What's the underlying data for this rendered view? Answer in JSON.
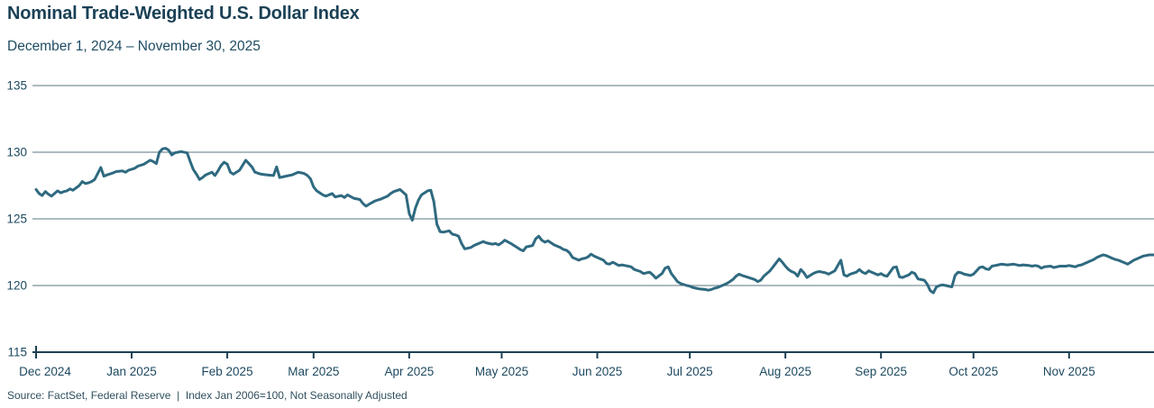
{
  "header": {
    "title": "Nominal Trade-Weighted U.S. Dollar Index",
    "subtitle": "December 1, 2024 – November 30, 2025"
  },
  "footer": {
    "source": "Source: FactSet, Federal Reserve  |  Index Jan 2006=100, Not Seasonally Adjusted"
  },
  "chart_data": {
    "type": "line",
    "title": "Nominal Trade-Weighted U.S. Dollar Index",
    "subtitle": "December 1, 2024 – November 30, 2025",
    "xlabel": "",
    "ylabel": "",
    "ylim": [
      115,
      135
    ],
    "y_ticks": [
      135,
      130,
      125,
      120,
      115
    ],
    "grid": true,
    "legend": "none",
    "x_start": "2024-12-01",
    "x_end": "2025-11-30",
    "x_ticks": [
      {
        "date": "2024-12-01",
        "label": "Dec 2024"
      },
      {
        "date": "2025-01-01",
        "label": "Jan 2025"
      },
      {
        "date": "2025-02-01",
        "label": "Feb 2025"
      },
      {
        "date": "2025-03-01",
        "label": "Mar 2025"
      },
      {
        "date": "2025-04-01",
        "label": "Apr 2025"
      },
      {
        "date": "2025-05-01",
        "label": "May 2025"
      },
      {
        "date": "2025-06-01",
        "label": "Jun 2025"
      },
      {
        "date": "2025-07-01",
        "label": "Jul 2025"
      },
      {
        "date": "2025-08-01",
        "label": "Aug 2025"
      },
      {
        "date": "2025-09-01",
        "label": "Sep 2025"
      },
      {
        "date": "2025-10-01",
        "label": "Oct 2025"
      },
      {
        "date": "2025-11-01",
        "label": "Nov 2025"
      }
    ],
    "line_color": "#2f6a80",
    "grid_color": "#5b7482",
    "axis_color": "#1c4052",
    "label_color": "#1d4960",
    "points": [
      [
        "2024-12-01",
        127.2
      ],
      [
        "2024-12-02",
        126.9
      ],
      [
        "2024-12-03",
        126.75
      ],
      [
        "2024-12-04",
        127.05
      ],
      [
        "2024-12-05",
        126.85
      ],
      [
        "2024-12-06",
        126.7
      ],
      [
        "2024-12-08",
        127.1
      ],
      [
        "2024-12-09",
        126.95
      ],
      [
        "2024-12-10",
        127.05
      ],
      [
        "2024-12-11",
        127.1
      ],
      [
        "2024-12-12",
        127.25
      ],
      [
        "2024-12-13",
        127.15
      ],
      [
        "2024-12-15",
        127.5
      ],
      [
        "2024-12-16",
        127.8
      ],
      [
        "2024-12-17",
        127.65
      ],
      [
        "2024-12-18",
        127.7
      ],
      [
        "2024-12-19",
        127.8
      ],
      [
        "2024-12-20",
        127.95
      ],
      [
        "2024-12-22",
        128.85
      ],
      [
        "2024-12-23",
        128.2
      ],
      [
        "2024-12-24",
        128.3
      ],
      [
        "2024-12-26",
        128.45
      ],
      [
        "2024-12-27",
        128.55
      ],
      [
        "2024-12-29",
        128.6
      ],
      [
        "2024-12-30",
        128.5
      ],
      [
        "2024-12-31",
        128.65
      ],
      [
        "2025-01-02",
        128.8
      ],
      [
        "2025-01-03",
        128.95
      ],
      [
        "2025-01-05",
        129.1
      ],
      [
        "2025-01-06",
        129.25
      ],
      [
        "2025-01-07",
        129.4
      ],
      [
        "2025-01-08",
        129.3
      ],
      [
        "2025-01-09",
        129.15
      ],
      [
        "2025-01-10",
        130.0
      ],
      [
        "2025-01-11",
        130.25
      ],
      [
        "2025-01-12",
        130.3
      ],
      [
        "2025-01-13",
        130.15
      ],
      [
        "2025-01-14",
        129.8
      ],
      [
        "2025-01-15",
        129.95
      ],
      [
        "2025-01-16",
        130.0
      ],
      [
        "2025-01-17",
        130.05
      ],
      [
        "2025-01-19",
        129.95
      ],
      [
        "2025-01-20",
        129.3
      ],
      [
        "2025-01-21",
        128.7
      ],
      [
        "2025-01-22",
        128.35
      ],
      [
        "2025-01-23",
        127.95
      ],
      [
        "2025-01-24",
        128.1
      ],
      [
        "2025-01-25",
        128.3
      ],
      [
        "2025-01-27",
        128.5
      ],
      [
        "2025-01-28",
        128.25
      ],
      [
        "2025-01-29",
        128.6
      ],
      [
        "2025-01-30",
        129.0
      ],
      [
        "2025-01-31",
        129.25
      ],
      [
        "2025-02-01",
        129.1
      ],
      [
        "2025-02-02",
        128.5
      ],
      [
        "2025-02-03",
        128.35
      ],
      [
        "2025-02-05",
        128.65
      ],
      [
        "2025-02-07",
        129.4
      ],
      [
        "2025-02-09",
        128.9
      ],
      [
        "2025-02-10",
        128.5
      ],
      [
        "2025-02-12",
        128.35
      ],
      [
        "2025-02-14",
        128.3
      ],
      [
        "2025-02-16",
        128.25
      ],
      [
        "2025-02-17",
        128.9
      ],
      [
        "2025-02-18",
        128.1
      ],
      [
        "2025-02-20",
        128.2
      ],
      [
        "2025-02-22",
        128.3
      ],
      [
        "2025-02-24",
        128.5
      ],
      [
        "2025-02-25",
        128.45
      ],
      [
        "2025-02-26",
        128.4
      ],
      [
        "2025-02-27",
        128.25
      ],
      [
        "2025-02-28",
        128.0
      ],
      [
        "2025-03-01",
        127.4
      ],
      [
        "2025-03-02",
        127.1
      ],
      [
        "2025-03-04",
        126.8
      ],
      [
        "2025-03-05",
        126.7
      ],
      [
        "2025-03-07",
        126.9
      ],
      [
        "2025-03-08",
        126.65
      ],
      [
        "2025-03-10",
        126.75
      ],
      [
        "2025-03-11",
        126.6
      ],
      [
        "2025-03-12",
        126.8
      ],
      [
        "2025-03-14",
        126.55
      ],
      [
        "2025-03-16",
        126.45
      ],
      [
        "2025-03-17",
        126.15
      ],
      [
        "2025-03-18",
        125.95
      ],
      [
        "2025-03-19",
        126.1
      ],
      [
        "2025-03-21",
        126.35
      ],
      [
        "2025-03-23",
        126.5
      ],
      [
        "2025-03-25",
        126.7
      ],
      [
        "2025-03-26",
        126.9
      ],
      [
        "2025-03-27",
        127.05
      ],
      [
        "2025-03-29",
        127.2
      ],
      [
        "2025-03-30",
        127.0
      ],
      [
        "2025-03-31",
        126.8
      ],
      [
        "2025-04-01",
        125.4
      ],
      [
        "2025-04-02",
        124.9
      ],
      [
        "2025-04-03",
        125.8
      ],
      [
        "2025-04-04",
        126.4
      ],
      [
        "2025-04-05",
        126.8
      ],
      [
        "2025-04-07",
        127.1
      ],
      [
        "2025-04-08",
        127.15
      ],
      [
        "2025-04-09",
        126.3
      ],
      [
        "2025-04-10",
        124.6
      ],
      [
        "2025-04-11",
        124.05
      ],
      [
        "2025-04-12",
        124.0
      ],
      [
        "2025-04-14",
        124.1
      ],
      [
        "2025-04-15",
        123.85
      ],
      [
        "2025-04-16",
        123.8
      ],
      [
        "2025-04-17",
        123.7
      ],
      [
        "2025-04-18",
        123.15
      ],
      [
        "2025-04-19",
        122.75
      ],
      [
        "2025-04-21",
        122.85
      ],
      [
        "2025-04-22",
        123.0
      ],
      [
        "2025-04-23",
        123.1
      ],
      [
        "2025-04-25",
        123.3
      ],
      [
        "2025-04-26",
        123.2
      ],
      [
        "2025-04-28",
        123.1
      ],
      [
        "2025-04-29",
        123.15
      ],
      [
        "2025-04-30",
        123.05
      ],
      [
        "2025-05-01",
        123.2
      ],
      [
        "2025-05-02",
        123.4
      ],
      [
        "2025-05-04",
        123.15
      ],
      [
        "2025-05-05",
        123.0
      ],
      [
        "2025-05-06",
        122.85
      ],
      [
        "2025-05-07",
        122.7
      ],
      [
        "2025-05-08",
        122.6
      ],
      [
        "2025-05-09",
        122.9
      ],
      [
        "2025-05-11",
        123.0
      ],
      [
        "2025-05-12",
        123.5
      ],
      [
        "2025-05-13",
        123.7
      ],
      [
        "2025-05-14",
        123.4
      ],
      [
        "2025-05-15",
        123.25
      ],
      [
        "2025-05-16",
        123.35
      ],
      [
        "2025-05-18",
        123.05
      ],
      [
        "2025-05-20",
        122.85
      ],
      [
        "2025-05-21",
        122.7
      ],
      [
        "2025-05-22",
        122.65
      ],
      [
        "2025-05-23",
        122.45
      ],
      [
        "2025-05-24",
        122.1
      ],
      [
        "2025-05-26",
        121.9
      ],
      [
        "2025-05-27",
        122.0
      ],
      [
        "2025-05-28",
        122.05
      ],
      [
        "2025-05-29",
        122.15
      ],
      [
        "2025-05-30",
        122.35
      ],
      [
        "2025-05-31",
        122.2
      ],
      [
        "2025-06-01",
        122.1
      ],
      [
        "2025-06-02",
        122.0
      ],
      [
        "2025-06-03",
        121.9
      ],
      [
        "2025-06-04",
        121.65
      ],
      [
        "2025-06-05",
        121.6
      ],
      [
        "2025-06-06",
        121.75
      ],
      [
        "2025-06-08",
        121.5
      ],
      [
        "2025-06-09",
        121.55
      ],
      [
        "2025-06-10",
        121.5
      ],
      [
        "2025-06-11",
        121.45
      ],
      [
        "2025-06-12",
        121.4
      ],
      [
        "2025-06-13",
        121.2
      ],
      [
        "2025-06-15",
        121.05
      ],
      [
        "2025-06-16",
        120.9
      ],
      [
        "2025-06-17",
        120.95
      ],
      [
        "2025-06-18",
        121.0
      ],
      [
        "2025-06-19",
        120.8
      ],
      [
        "2025-06-20",
        120.55
      ],
      [
        "2025-06-22",
        120.9
      ],
      [
        "2025-06-23",
        121.3
      ],
      [
        "2025-06-24",
        121.4
      ],
      [
        "2025-06-25",
        120.9
      ],
      [
        "2025-06-26",
        120.6
      ],
      [
        "2025-06-27",
        120.3
      ],
      [
        "2025-06-28",
        120.15
      ],
      [
        "2025-06-30",
        120.0
      ],
      [
        "2025-07-01",
        119.95
      ],
      [
        "2025-07-02",
        119.85
      ],
      [
        "2025-07-03",
        119.8
      ],
      [
        "2025-07-04",
        119.75
      ],
      [
        "2025-07-06",
        119.7
      ],
      [
        "2025-07-07",
        119.65
      ],
      [
        "2025-07-08",
        119.7
      ],
      [
        "2025-07-09",
        119.8
      ],
      [
        "2025-07-10",
        119.85
      ],
      [
        "2025-07-11",
        119.95
      ],
      [
        "2025-07-13",
        120.15
      ],
      [
        "2025-07-14",
        120.3
      ],
      [
        "2025-07-15",
        120.45
      ],
      [
        "2025-07-16",
        120.7
      ],
      [
        "2025-07-17",
        120.85
      ],
      [
        "2025-07-18",
        120.75
      ],
      [
        "2025-07-20",
        120.6
      ],
      [
        "2025-07-22",
        120.45
      ],
      [
        "2025-07-23",
        120.3
      ],
      [
        "2025-07-24",
        120.4
      ],
      [
        "2025-07-25",
        120.7
      ],
      [
        "2025-07-27",
        121.1
      ],
      [
        "2025-07-28",
        121.4
      ],
      [
        "2025-07-29",
        121.7
      ],
      [
        "2025-07-30",
        122.0
      ],
      [
        "2025-07-31",
        121.75
      ],
      [
        "2025-08-01",
        121.45
      ],
      [
        "2025-08-02",
        121.2
      ],
      [
        "2025-08-03",
        121.05
      ],
      [
        "2025-08-04",
        120.95
      ],
      [
        "2025-08-05",
        120.7
      ],
      [
        "2025-08-06",
        121.2
      ],
      [
        "2025-08-07",
        120.95
      ],
      [
        "2025-08-08",
        120.6
      ],
      [
        "2025-08-10",
        120.9
      ],
      [
        "2025-08-11",
        121.0
      ],
      [
        "2025-08-12",
        121.05
      ],
      [
        "2025-08-13",
        121.0
      ],
      [
        "2025-08-14",
        120.95
      ],
      [
        "2025-08-15",
        120.85
      ],
      [
        "2025-08-17",
        121.1
      ],
      [
        "2025-08-18",
        121.5
      ],
      [
        "2025-08-19",
        121.9
      ],
      [
        "2025-08-20",
        120.8
      ],
      [
        "2025-08-21",
        120.7
      ],
      [
        "2025-08-22",
        120.85
      ],
      [
        "2025-08-24",
        121.0
      ],
      [
        "2025-08-25",
        121.2
      ],
      [
        "2025-08-26",
        121.0
      ],
      [
        "2025-08-27",
        120.9
      ],
      [
        "2025-08-28",
        121.1
      ],
      [
        "2025-08-29",
        121.0
      ],
      [
        "2025-08-31",
        120.8
      ],
      [
        "2025-09-01",
        120.9
      ],
      [
        "2025-09-02",
        120.75
      ],
      [
        "2025-09-03",
        120.7
      ],
      [
        "2025-09-05",
        121.35
      ],
      [
        "2025-09-06",
        121.4
      ],
      [
        "2025-09-07",
        120.65
      ],
      [
        "2025-09-08",
        120.6
      ],
      [
        "2025-09-09",
        120.7
      ],
      [
        "2025-09-10",
        120.8
      ],
      [
        "2025-09-11",
        121.0
      ],
      [
        "2025-09-12",
        120.9
      ],
      [
        "2025-09-13",
        120.5
      ],
      [
        "2025-09-15",
        120.4
      ],
      [
        "2025-09-16",
        120.1
      ],
      [
        "2025-09-17",
        119.6
      ],
      [
        "2025-09-18",
        119.45
      ],
      [
        "2025-09-19",
        119.9
      ],
      [
        "2025-09-20",
        120.0
      ],
      [
        "2025-09-21",
        120.05
      ],
      [
        "2025-09-22",
        120.0
      ],
      [
        "2025-09-24",
        119.9
      ],
      [
        "2025-09-25",
        120.75
      ],
      [
        "2025-09-26",
        121.0
      ],
      [
        "2025-09-27",
        120.95
      ],
      [
        "2025-09-28",
        120.85
      ],
      [
        "2025-09-30",
        120.75
      ],
      [
        "2025-10-01",
        120.85
      ],
      [
        "2025-10-02",
        121.1
      ],
      [
        "2025-10-03",
        121.35
      ],
      [
        "2025-10-04",
        121.4
      ],
      [
        "2025-10-05",
        121.25
      ],
      [
        "2025-10-06",
        121.2
      ],
      [
        "2025-10-07",
        121.45
      ],
      [
        "2025-10-08",
        121.5
      ],
      [
        "2025-10-09",
        121.55
      ],
      [
        "2025-10-10",
        121.6
      ],
      [
        "2025-10-12",
        121.55
      ],
      [
        "2025-10-14",
        121.6
      ],
      [
        "2025-10-15",
        121.55
      ],
      [
        "2025-10-16",
        121.5
      ],
      [
        "2025-10-17",
        121.55
      ],
      [
        "2025-10-19",
        121.5
      ],
      [
        "2025-10-20",
        121.45
      ],
      [
        "2025-10-21",
        121.5
      ],
      [
        "2025-10-22",
        121.45
      ],
      [
        "2025-10-23",
        121.3
      ],
      [
        "2025-10-24",
        121.4
      ],
      [
        "2025-10-26",
        121.45
      ],
      [
        "2025-10-27",
        121.35
      ],
      [
        "2025-10-28",
        121.4
      ],
      [
        "2025-10-29",
        121.45
      ],
      [
        "2025-10-31",
        121.45
      ],
      [
        "2025-11-01",
        121.5
      ],
      [
        "2025-11-02",
        121.45
      ],
      [
        "2025-11-03",
        121.4
      ],
      [
        "2025-11-04",
        121.5
      ],
      [
        "2025-11-05",
        121.55
      ],
      [
        "2025-11-06",
        121.65
      ],
      [
        "2025-11-07",
        121.75
      ],
      [
        "2025-11-08",
        121.85
      ],
      [
        "2025-11-09",
        121.95
      ],
      [
        "2025-11-10",
        122.1
      ],
      [
        "2025-11-11",
        122.2
      ],
      [
        "2025-11-12",
        122.3
      ],
      [
        "2025-11-13",
        122.25
      ],
      [
        "2025-11-14",
        122.15
      ],
      [
        "2025-11-15",
        122.05
      ],
      [
        "2025-11-16",
        121.95
      ],
      [
        "2025-11-17",
        121.9
      ],
      [
        "2025-11-18",
        121.8
      ],
      [
        "2025-11-19",
        121.7
      ],
      [
        "2025-11-20",
        121.6
      ],
      [
        "2025-11-21",
        121.75
      ],
      [
        "2025-11-22",
        121.9
      ],
      [
        "2025-11-23",
        122.0
      ],
      [
        "2025-11-24",
        122.1
      ],
      [
        "2025-11-25",
        122.2
      ],
      [
        "2025-11-26",
        122.25
      ],
      [
        "2025-11-27",
        122.3
      ],
      [
        "2025-11-28",
        122.3
      ],
      [
        "2025-11-30",
        122.3
      ]
    ]
  }
}
